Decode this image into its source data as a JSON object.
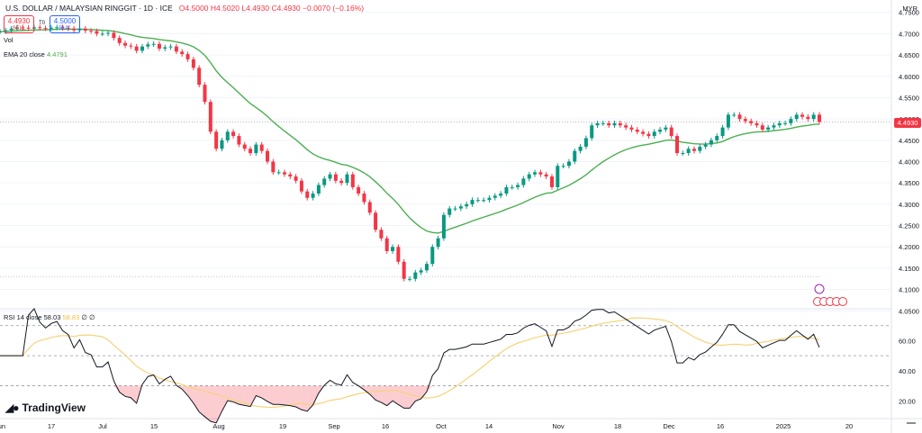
{
  "header": {
    "symbol": "U.S. DOLLAR / MALAYSIAN RINGGIT · 1D · ICE",
    "ohlc": {
      "o": "O4.5000",
      "h": "H4.5020",
      "l": "L4.4930",
      "c": "C4.4930",
      "chg": "−0.0070 (−0.16%)"
    }
  },
  "quote": {
    "sell_price": "4.4930",
    "sell_label": "SELL",
    "to": "T0",
    "buy_price": "4.5000",
    "buy_label": "BUY"
  },
  "volume_label": "Vol",
  "ema_legend": {
    "label": "EMA 20 close",
    "value": "4.4791"
  },
  "rsi_legend": {
    "label": "RSI 14 close",
    "value": "58.03",
    "smoothed": "58.83",
    "na": "∅ ∅"
  },
  "currency_label": "MYR",
  "price_tag": "4.4930",
  "logo_text": "TradingView",
  "colors": {
    "up": "#089981",
    "down": "#f23645",
    "ema": "#4caf50",
    "rsi": "#131722",
    "rsi_ma": "#f5d37a",
    "rsi_fill": "#f23645"
  },
  "chart_data": [
    {
      "type": "candlestick",
      "title": "U.S. DOLLAR / MALAYSIAN RINGGIT · 1D · ICE",
      "y_axis_ticks": [
        "4.7500",
        "4.7000",
        "4.6500",
        "4.6000",
        "4.5500",
        "4.5000",
        "4.4500",
        "4.4000",
        "4.3500",
        "4.3000",
        "4.2500",
        "4.2000",
        "4.1500",
        "4.1000",
        "4.0500"
      ],
      "ylim": [
        4.04,
        4.76
      ],
      "x_axis_ticks": [
        "Jun",
        "17",
        "Jul",
        "15",
        "Aug",
        "19",
        "Sep",
        "16",
        "Oct",
        "14",
        "Nov",
        "18",
        "Dec",
        "16",
        "2025",
        "20"
      ],
      "close": [
        4.705,
        4.708,
        4.712,
        4.715,
        4.714,
        4.712,
        4.715,
        4.713,
        4.712,
        4.714,
        4.715,
        4.713,
        4.712,
        4.708,
        4.712,
        4.707,
        4.706,
        4.7,
        4.7,
        4.702,
        4.69,
        4.678,
        4.672,
        4.67,
        4.66,
        4.67,
        4.675,
        4.676,
        4.665,
        4.668,
        4.67,
        4.658,
        4.652,
        4.64,
        4.62,
        4.58,
        4.54,
        4.47,
        4.43,
        4.45,
        4.47,
        4.46,
        4.44,
        4.43,
        4.42,
        4.44,
        4.425,
        4.4,
        4.375,
        4.375,
        4.37,
        4.365,
        4.355,
        4.33,
        4.315,
        4.325,
        4.345,
        4.36,
        4.37,
        4.355,
        4.35,
        4.37,
        4.34,
        4.325,
        4.305,
        4.28,
        4.24,
        4.22,
        4.19,
        4.2,
        4.165,
        4.125,
        4.125,
        4.14,
        4.145,
        4.16,
        4.2,
        4.22,
        4.275,
        4.29,
        4.29,
        4.295,
        4.3,
        4.31,
        4.31,
        4.31,
        4.315,
        4.32,
        4.325,
        4.34,
        4.34,
        4.345,
        4.36,
        4.37,
        4.375,
        4.37,
        4.365,
        4.34,
        4.39,
        4.39,
        4.4,
        4.425,
        4.435,
        4.455,
        4.485,
        4.49,
        4.49,
        4.485,
        4.49,
        4.485,
        4.48,
        4.475,
        4.47,
        4.465,
        4.46,
        4.47,
        4.475,
        4.48,
        4.46,
        4.42,
        4.42,
        4.43,
        4.425,
        4.435,
        4.44,
        4.45,
        4.46,
        4.48,
        4.51,
        4.51,
        4.5,
        4.495,
        4.49,
        4.485,
        4.475,
        4.48,
        4.485,
        4.49,
        4.49,
        4.5,
        4.51,
        4.505,
        4.5,
        4.51,
        4.493
      ],
      "series": [
        {
          "name": "EMA 20 close",
          "last": 4.4791
        },
        {
          "name": "RSI 14 close",
          "last": 58.03,
          "ylim": [
            10,
            80
          ],
          "levels": [
            70,
            50,
            30
          ],
          "ticks": [
            "60.00",
            "40.00",
            "20.00"
          ]
        }
      ]
    }
  ]
}
